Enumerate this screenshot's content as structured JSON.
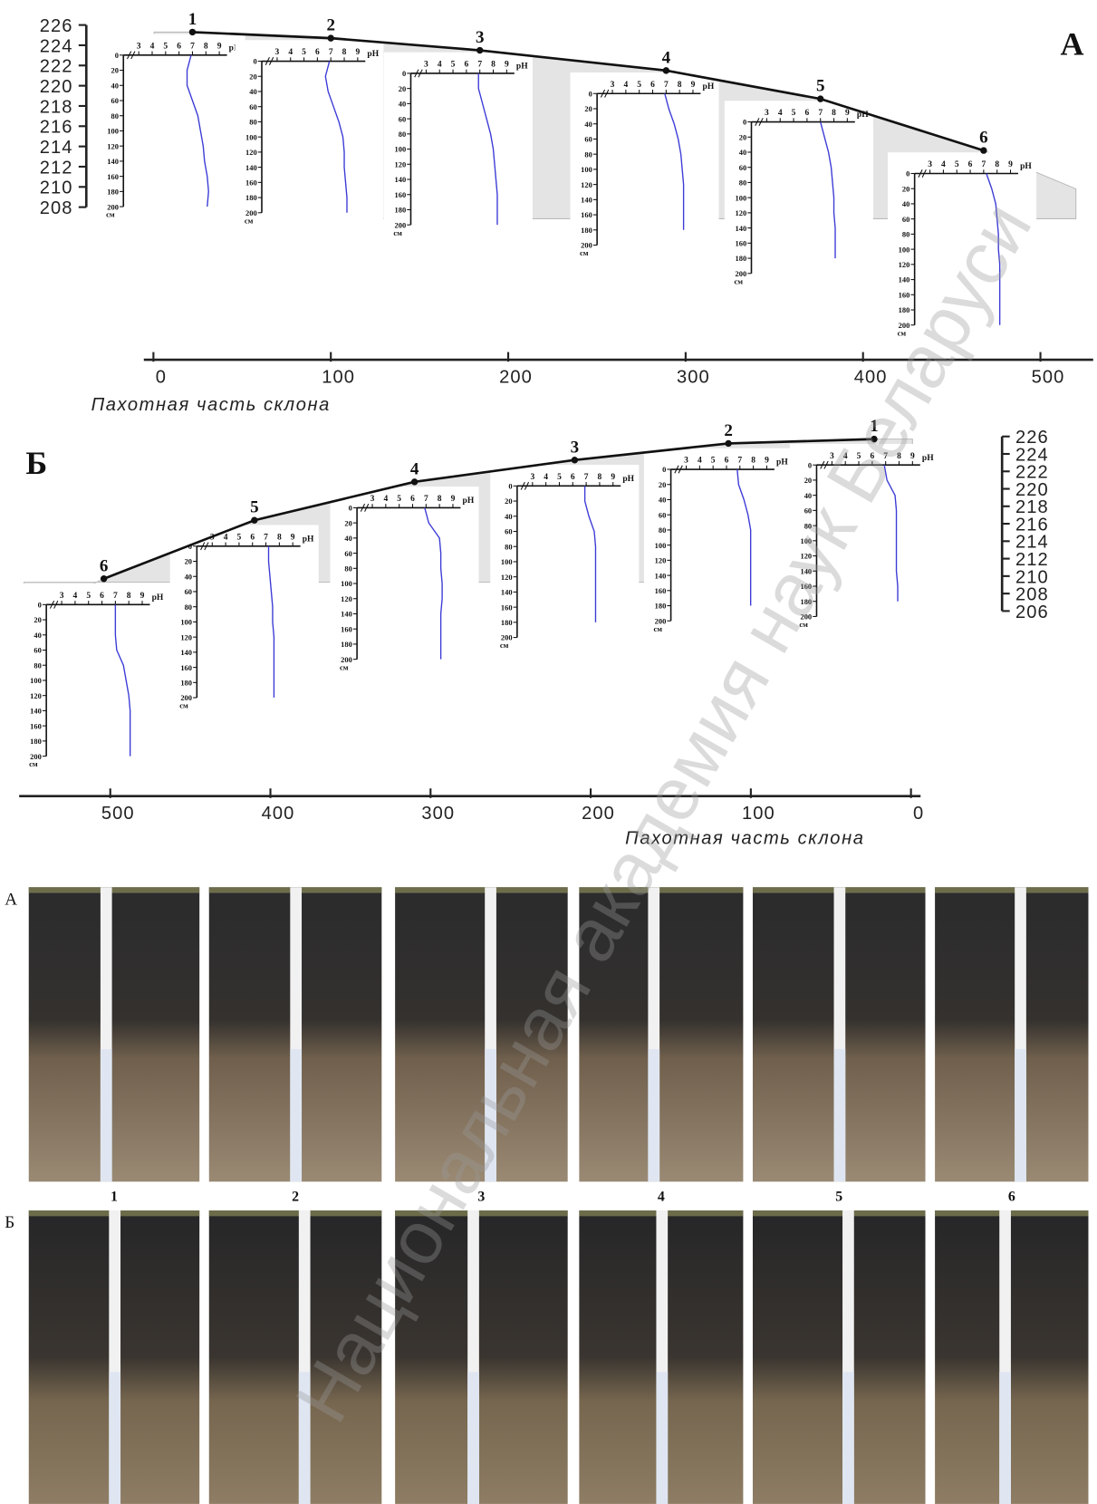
{
  "figure": {
    "ph_axis": {
      "ticks": [
        3,
        4,
        5,
        6,
        7,
        8,
        9
      ],
      "unit": "pH"
    },
    "depth_axis": {
      "ticks": [
        0,
        20,
        40,
        60,
        80,
        100,
        120,
        140,
        160,
        180,
        200
      ],
      "unit": "см"
    },
    "panels": [
      {
        "label": "А",
        "x_label": "Пахотная часть склона",
        "elevation_ticks": [
          226,
          224,
          222,
          220,
          218,
          216,
          214,
          212,
          210,
          208
        ],
        "distance_ticks": [
          0,
          100,
          200,
          300,
          400,
          500
        ],
        "profiles": [
          {
            "label": "1",
            "distance": 22,
            "elevation": 225.3,
            "ph": [
              6.9,
              6.6,
              6.6,
              7.0,
              7.4,
              7.6,
              7.8,
              7.9,
              8.1,
              8.2,
              8.1
            ]
          },
          {
            "label": "2",
            "distance": 100,
            "elevation": 224.7,
            "ph": [
              6.9,
              6.6,
              6.8,
              7.2,
              7.6,
              7.9,
              8.0,
              8.0,
              8.1,
              8.2,
              8.2
            ]
          },
          {
            "label": "3",
            "distance": 184,
            "elevation": 223.5,
            "ph": [
              6.9,
              6.9,
              7.2,
              7.5,
              7.8,
              8.0,
              8.1,
              8.2,
              8.3,
              8.3,
              8.3
            ]
          },
          {
            "label": "4",
            "distance": 289,
            "elevation": 221.5,
            "ph": [
              6.9,
              7.2,
              7.6,
              7.9,
              8.1,
              8.2,
              8.3,
              8.3,
              8.3,
              8.3,
              null
            ]
          },
          {
            "label": "5",
            "distance": 376,
            "elevation": 218.7,
            "ph": [
              7.0,
              7.3,
              7.6,
              7.8,
              7.9,
              8.0,
              8.0,
              8.1,
              8.1,
              8.1,
              null
            ]
          },
          {
            "label": "6",
            "distance": 468,
            "elevation": 213.6,
            "ph": [
              7.2,
              7.6,
              7.9,
              8.0,
              8.1,
              8.1,
              8.2,
              8.2,
              8.2,
              8.2,
              8.2
            ]
          }
        ]
      },
      {
        "label": "Б",
        "x_label": "Пахотная часть склона",
        "elevation_ticks": [
          226,
          224,
          222,
          220,
          218,
          216,
          214,
          212,
          210,
          208,
          206
        ],
        "distance_ticks": [
          500,
          400,
          300,
          200,
          100,
          0
        ],
        "profiles": [
          {
            "label": "1",
            "distance": 23,
            "elevation": 225.7,
            "ph": [
              6.9,
              7.1,
              7.7,
              7.8,
              7.8,
              7.8,
              7.8,
              7.8,
              7.9,
              7.9,
              null
            ]
          },
          {
            "label": "2",
            "distance": 114,
            "elevation": 225.2,
            "ph": [
              6.8,
              6.9,
              7.3,
              7.6,
              7.8,
              7.8,
              7.8,
              7.8,
              7.8,
              7.8,
              null
            ]
          },
          {
            "label": "3",
            "distance": 210,
            "elevation": 223.3,
            "ph": [
              6.9,
              6.9,
              7.2,
              7.6,
              7.7,
              7.7,
              7.7,
              7.7,
              7.7,
              7.7,
              null
            ]
          },
          {
            "label": "4",
            "distance": 310,
            "elevation": 220.8,
            "ph": [
              6.9,
              7.2,
              8.0,
              8.1,
              8.1,
              8.2,
              8.2,
              8.1,
              8.1,
              8.1,
              8.1
            ]
          },
          {
            "label": "5",
            "distance": 410,
            "elevation": 216.4,
            "ph": [
              7.2,
              7.2,
              7.3,
              7.4,
              7.5,
              7.5,
              7.6,
              7.6,
              7.6,
              7.6,
              7.6
            ]
          },
          {
            "label": "6",
            "distance": 504,
            "elevation": 209.7,
            "ph": [
              7.0,
              7.0,
              7.0,
              7.1,
              7.6,
              7.8,
              8.0,
              8.1,
              8.1,
              8.1,
              8.1
            ]
          }
        ]
      }
    ],
    "photos": {
      "rows": [
        "А",
        "Б"
      ],
      "labels": [
        "1",
        "2",
        "3",
        "4",
        "5",
        "6"
      ]
    },
    "watermark": "Национальная академия наук Беларуси"
  }
}
